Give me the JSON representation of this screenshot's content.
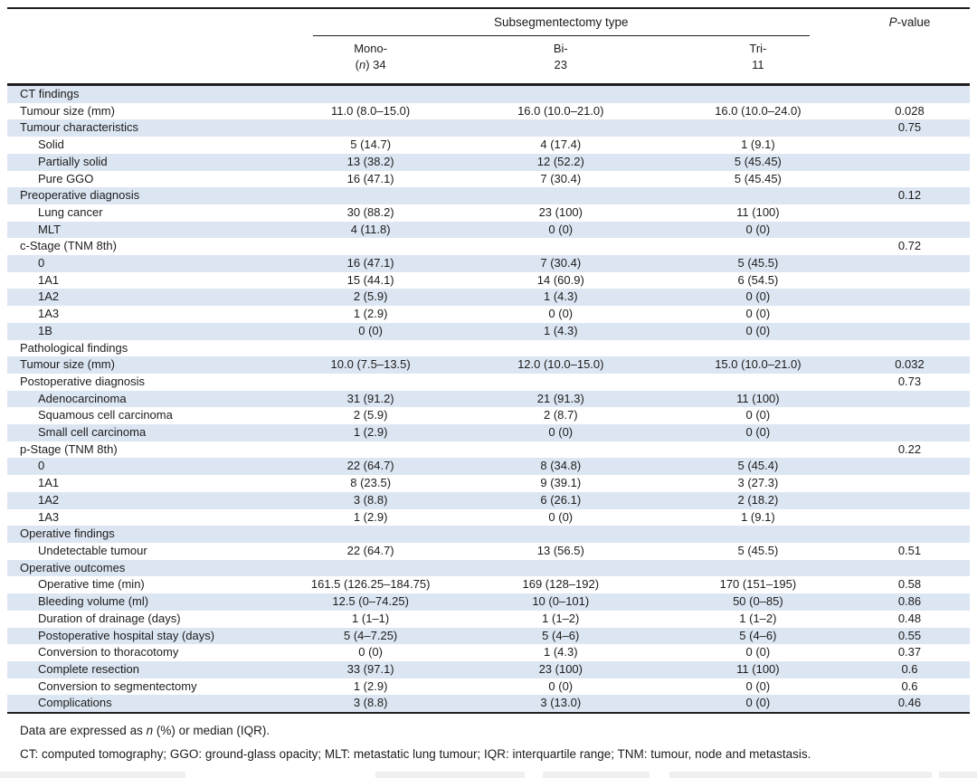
{
  "colors": {
    "row_shade": "#dce6f2",
    "rule": "#1f1f1f",
    "text": "#1c1c1c",
    "background": "#ffffff"
  },
  "table": {
    "group_header": "Subsegmentectomy type",
    "p_header_italic": "P",
    "p_header_rest": "-value",
    "columns": [
      {
        "line1": "Mono-",
        "line2_pre": "(",
        "line2_italic": "n",
        "line2_post": ") 34"
      },
      {
        "line1": "Bi-",
        "line2": "23"
      },
      {
        "line1": "Tri-",
        "line2": "11"
      }
    ],
    "rows": [
      {
        "label": "CT findings",
        "indent": 0,
        "values": [
          "",
          "",
          ""
        ],
        "p": ""
      },
      {
        "label": "Tumour size (mm)",
        "indent": 0,
        "values": [
          "11.0 (8.0–15.0)",
          "16.0 (10.0–21.0)",
          "16.0 (10.0–24.0)"
        ],
        "p": "0.028"
      },
      {
        "label": "Tumour characteristics",
        "indent": 0,
        "values": [
          "",
          "",
          ""
        ],
        "p": "0.75"
      },
      {
        "label": "Solid",
        "indent": 1,
        "values": [
          "5 (14.7)",
          "4 (17.4)",
          "1 (9.1)"
        ],
        "p": ""
      },
      {
        "label": "Partially solid",
        "indent": 1,
        "values": [
          "13 (38.2)",
          "12 (52.2)",
          "5 (45.45)"
        ],
        "p": ""
      },
      {
        "label": "Pure GGO",
        "indent": 1,
        "values": [
          "16 (47.1)",
          "7 (30.4)",
          "5 (45.45)"
        ],
        "p": ""
      },
      {
        "label": "Preoperative diagnosis",
        "indent": 0,
        "values": [
          "",
          "",
          ""
        ],
        "p": "0.12"
      },
      {
        "label": "Lung cancer",
        "indent": 1,
        "values": [
          "30 (88.2)",
          "23 (100)",
          "11 (100)"
        ],
        "p": ""
      },
      {
        "label": "MLT",
        "indent": 1,
        "values": [
          "4 (11.8)",
          "0 (0)",
          "0 (0)"
        ],
        "p": ""
      },
      {
        "label": "c-Stage (TNM 8th)",
        "indent": 0,
        "values": [
          "",
          "",
          ""
        ],
        "p": "0.72"
      },
      {
        "label": "0",
        "indent": 1,
        "values": [
          "16 (47.1)",
          "7 (30.4)",
          "5 (45.5)"
        ],
        "p": ""
      },
      {
        "label": "1A1",
        "indent": 1,
        "values": [
          "15 (44.1)",
          "14 (60.9)",
          "6 (54.5)"
        ],
        "p": ""
      },
      {
        "label": "1A2",
        "indent": 1,
        "values": [
          "2 (5.9)",
          "1 (4.3)",
          "0 (0)"
        ],
        "p": ""
      },
      {
        "label": "1A3",
        "indent": 1,
        "values": [
          "1 (2.9)",
          "0 (0)",
          "0 (0)"
        ],
        "p": ""
      },
      {
        "label": "1B",
        "indent": 1,
        "values": [
          "0 (0)",
          "1 (4.3)",
          "0 (0)"
        ],
        "p": ""
      },
      {
        "label": "Pathological findings",
        "indent": 0,
        "values": [
          "",
          "",
          ""
        ],
        "p": ""
      },
      {
        "label": "Tumour size (mm)",
        "indent": 0,
        "values": [
          "10.0 (7.5–13.5)",
          "12.0 (10.0–15.0)",
          "15.0 (10.0–21.0)"
        ],
        "p": "0.032"
      },
      {
        "label": "Postoperative diagnosis",
        "indent": 0,
        "values": [
          "",
          "",
          ""
        ],
        "p": "0.73"
      },
      {
        "label": "Adenocarcinoma",
        "indent": 1,
        "values": [
          "31 (91.2)",
          "21 (91.3)",
          "11 (100)"
        ],
        "p": ""
      },
      {
        "label": "Squamous cell carcinoma",
        "indent": 1,
        "values": [
          "2 (5.9)",
          "2 (8.7)",
          "0 (0)"
        ],
        "p": ""
      },
      {
        "label": "Small cell carcinoma",
        "indent": 1,
        "values": [
          "1 (2.9)",
          "0 (0)",
          "0 (0)"
        ],
        "p": ""
      },
      {
        "label": "p-Stage (TNM 8th)",
        "indent": 0,
        "values": [
          "",
          "",
          ""
        ],
        "p": "0.22"
      },
      {
        "label": "0",
        "indent": 1,
        "values": [
          "22 (64.7)",
          "8 (34.8)",
          "5 (45.4)"
        ],
        "p": ""
      },
      {
        "label": "1A1",
        "indent": 1,
        "values": [
          "8 (23.5)",
          "9 (39.1)",
          "3 (27.3)"
        ],
        "p": ""
      },
      {
        "label": "1A2",
        "indent": 1,
        "values": [
          "3 (8.8)",
          "6 (26.1)",
          "2 (18.2)"
        ],
        "p": ""
      },
      {
        "label": "1A3",
        "indent": 1,
        "values": [
          "1 (2.9)",
          "0 (0)",
          "1 (9.1)"
        ],
        "p": ""
      },
      {
        "label": "Operative findings",
        "indent": 0,
        "values": [
          "",
          "",
          ""
        ],
        "p": ""
      },
      {
        "label": "Undetectable tumour",
        "indent": 1,
        "values": [
          "22 (64.7)",
          "13 (56.5)",
          "5 (45.5)"
        ],
        "p": "0.51"
      },
      {
        "label": "Operative outcomes",
        "indent": 0,
        "values": [
          "",
          "",
          ""
        ],
        "p": ""
      },
      {
        "label": "Operative time (min)",
        "indent": 1,
        "values": [
          "161.5 (126.25–184.75)",
          "169 (128–192)",
          "170 (151–195)"
        ],
        "p": "0.58"
      },
      {
        "label": "Bleeding volume (ml)",
        "indent": 1,
        "values": [
          "12.5 (0–74.25)",
          "10 (0–101)",
          "50 (0–85)"
        ],
        "p": "0.86"
      },
      {
        "label": "Duration of drainage (days)",
        "indent": 1,
        "values": [
          "1 (1–1)",
          "1 (1–2)",
          "1 (1–2)"
        ],
        "p": "0.48"
      },
      {
        "label": "Postoperative hospital stay (days)",
        "indent": 1,
        "values": [
          "5 (4–7.25)",
          "5 (4–6)",
          "5 (4–6)"
        ],
        "p": "0.55"
      },
      {
        "label": "Conversion to thoracotomy",
        "indent": 1,
        "values": [
          "0 (0)",
          "1 (4.3)",
          "0 (0)"
        ],
        "p": "0.37"
      },
      {
        "label": "Complete resection",
        "indent": 1,
        "values": [
          "33 (97.1)",
          "23 (100)",
          "11 (100)"
        ],
        "p": "0.6"
      },
      {
        "label": "Conversion to segmentectomy",
        "indent": 1,
        "values": [
          "1 (2.9)",
          "0 (0)",
          "0 (0)"
        ],
        "p": "0.6"
      },
      {
        "label": "Complications",
        "indent": 1,
        "values": [
          "3 (8.8)",
          "3 (13.0)",
          "0 (0)"
        ],
        "p": "0.46"
      }
    ]
  },
  "footnotes": {
    "line1_pre": "Data are expressed as ",
    "line1_italic": "n",
    "line1_post": " (%) or median (IQR).",
    "line2": "CT: computed tomography; GGO: ground-glass opacity; MLT: metastatic lung tumour; IQR: interquartile range; TNM: tumour, node and metastasis."
  }
}
